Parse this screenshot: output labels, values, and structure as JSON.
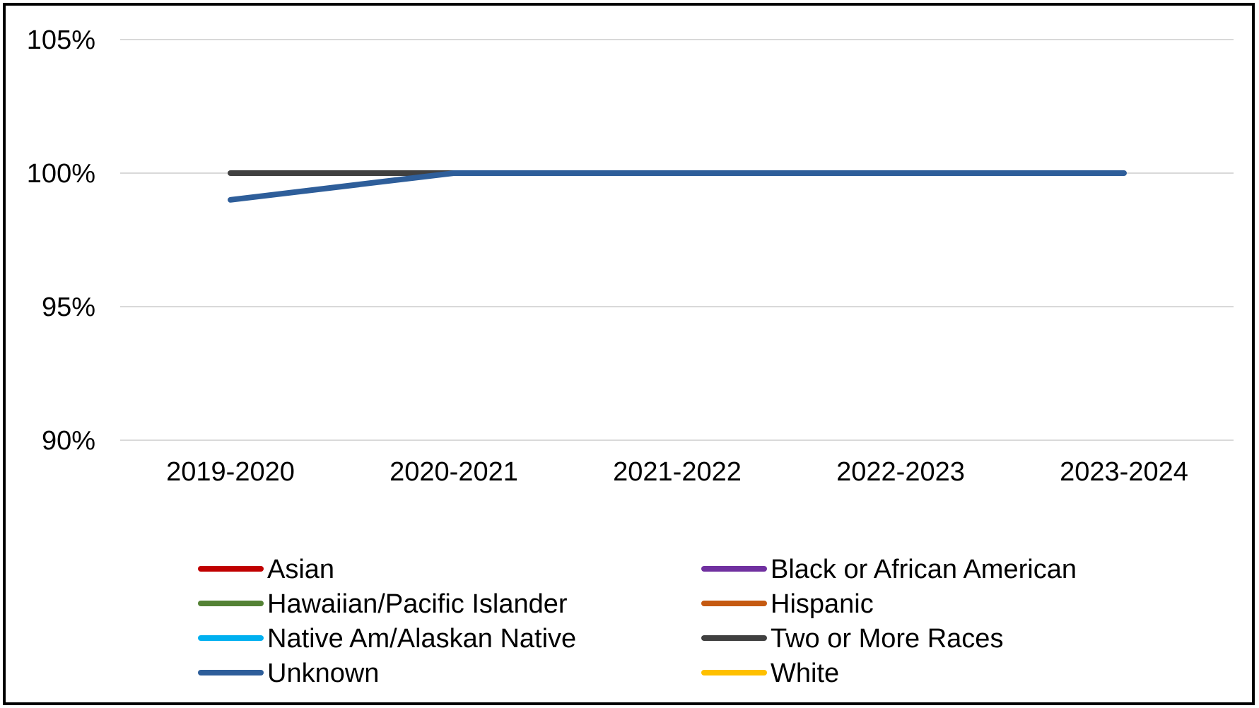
{
  "chart_data": {
    "type": "line",
    "title": "",
    "xlabel": "",
    "ylabel": "",
    "categories": [
      "2019-2020",
      "2020-2021",
      "2021-2022",
      "2022-2023",
      "2023-2024"
    ],
    "y_tick_labels": [
      "90%",
      "95%",
      "100%",
      "105%"
    ],
    "y_ticks": [
      90,
      95,
      100,
      105
    ],
    "ylim": [
      90,
      105
    ],
    "y_unit": "%",
    "grid": "horizontal",
    "legend_position": "bottom",
    "series": [
      {
        "name": "Asian",
        "color": "#c00000",
        "values": [
          null,
          null,
          null,
          null,
          null
        ]
      },
      {
        "name": "Black or African American",
        "color": "#7030a0",
        "values": [
          null,
          null,
          null,
          null,
          null
        ]
      },
      {
        "name": "Hawaiian/Pacific Islander",
        "color": "#548235",
        "values": [
          null,
          null,
          null,
          null,
          null
        ]
      },
      {
        "name": "Hispanic",
        "color": "#c55a11",
        "values": [
          null,
          null,
          null,
          null,
          null
        ]
      },
      {
        "name": "Native Am/Alaskan Native",
        "color": "#00b0f0",
        "values": [
          null,
          null,
          null,
          null,
          null
        ]
      },
      {
        "name": "Two or More Races",
        "color": "#404040",
        "values": [
          100,
          100,
          null,
          null,
          null
        ]
      },
      {
        "name": "Unknown",
        "color": "#2e5e9a",
        "values": [
          99,
          100,
          100,
          100,
          100
        ]
      },
      {
        "name": "White",
        "color": "#ffc000",
        "values": [
          null,
          null,
          null,
          null,
          null
        ]
      }
    ]
  }
}
